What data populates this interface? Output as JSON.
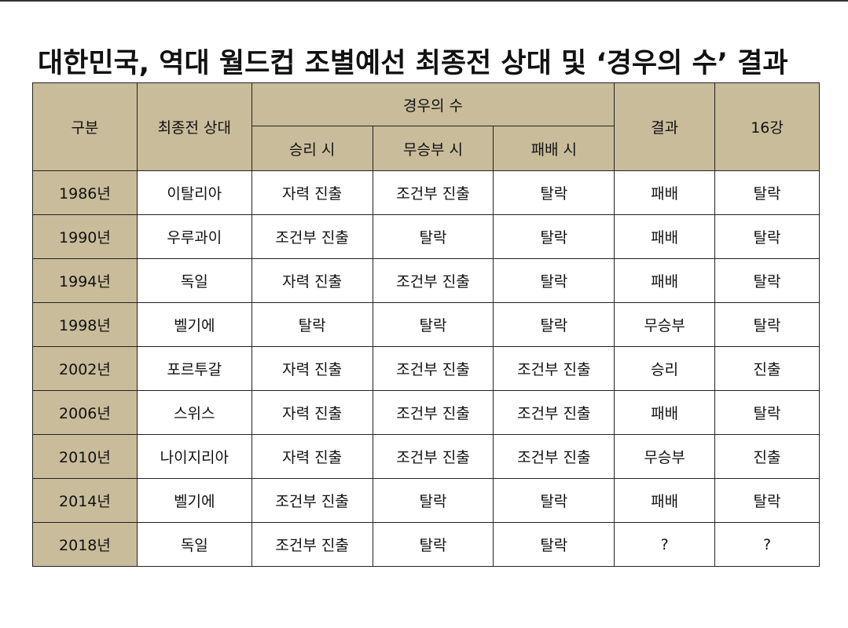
{
  "header": {
    "title": "대한민국, 역대 월드컵 조별예선 최종전 상대 및 ‘경우의 수’ 결과"
  },
  "table": {
    "columns": [
      "구분",
      "최종전 상대",
      "경우의 수",
      "결과",
      "16강"
    ],
    "subcolumns": [
      "승리 시",
      "무승부 시",
      "패배 시"
    ],
    "rows": [
      [
        "1986년",
        "이탈리아",
        "자력 진출",
        "조건부 진출",
        "탈락",
        "패배",
        "탈락"
      ],
      [
        "1990년",
        "우루과이",
        "조건부 진출",
        "탈락",
        "탈락",
        "패배",
        "탈락"
      ],
      [
        "1994년",
        "독일",
        "자력 진출",
        "조건부 진출",
        "탈락",
        "패배",
        "탈락"
      ],
      [
        "1998년",
        "벨기에",
        "탈락",
        "탈락",
        "탈락",
        "무승부",
        "탈락"
      ],
      [
        "2002년",
        "포르투갈",
        "자력 진출",
        "조건부 진출",
        "조건부 진출",
        "승리",
        "진출"
      ],
      [
        "2006년",
        "스위스",
        "자력 진출",
        "조건부 진출",
        "조건부 진출",
        "패배",
        "탈락"
      ],
      [
        "2010년",
        "나이지리아",
        "자력 진출",
        "조건부 진출",
        "조건부 진출",
        "무승부",
        "진출"
      ],
      [
        "2014년",
        "벨기에",
        "조건부 진출",
        "탈락",
        "탈락",
        "패배",
        "탈락"
      ],
      [
        "2018년",
        "독일",
        "조건부 진출",
        "탈락",
        "탈락",
        "?",
        "?"
      ]
    ]
  }
}
